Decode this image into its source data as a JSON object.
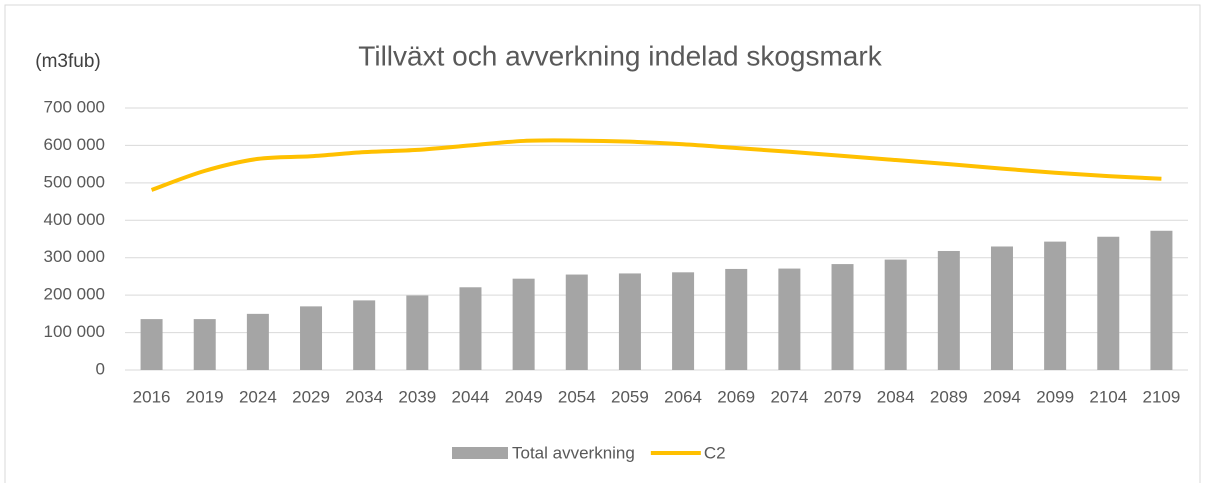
{
  "chart_data": {
    "type": "bar_line",
    "title": "Tillväxt och avverkning indelad skogsmark",
    "y_label": "(m3fub)",
    "categories": [
      "2016",
      "2019",
      "2024",
      "2029",
      "2034",
      "2039",
      "2044",
      "2049",
      "2054",
      "2059",
      "2064",
      "2069",
      "2074",
      "2079",
      "2084",
      "2089",
      "2094",
      "2099",
      "2104",
      "2109"
    ],
    "series": [
      {
        "name": "Total avverkning",
        "type": "bar",
        "color": "#a5a5a5",
        "values": [
          136000,
          136000,
          150000,
          170000,
          186000,
          199000,
          221000,
          244000,
          255000,
          258000,
          261000,
          270000,
          271000,
          283000,
          295000,
          318000,
          330000,
          343000,
          356000,
          372000
        ]
      },
      {
        "name": "C2",
        "type": "line",
        "color": "#ffc000",
        "values": [
          481000,
          532000,
          564000,
          571000,
          582000,
          588000,
          600000,
          612000,
          613000,
          610000,
          603000,
          593000,
          583000,
          572000,
          561000,
          550000,
          538000,
          527000,
          518000,
          511000
        ]
      }
    ],
    "ylim": [
      0,
      700000
    ],
    "yticks": [
      0,
      {
        "value": 100000,
        "label": "100 000"
      },
      {
        "value": 200000,
        "label": "200 000"
      },
      {
        "value": 300000,
        "label": "300 000"
      },
      {
        "value": 400000,
        "label": "400 000"
      },
      {
        "value": 500000,
        "label": "500 000"
      },
      {
        "value": 600000,
        "label": "600 000"
      },
      {
        "value": 700000,
        "label": "700 000"
      }
    ],
    "grid": true,
    "legend": "bottom"
  }
}
